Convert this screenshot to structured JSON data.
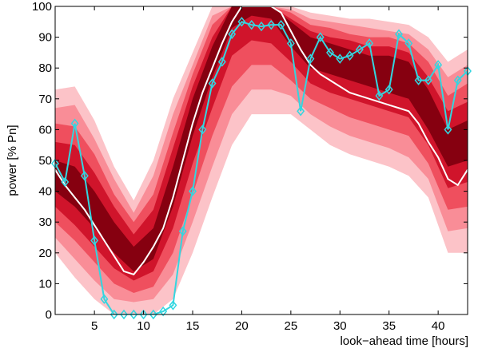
{
  "chart_data": {
    "type": "fan",
    "xlabel": "look−ahead time [hours]",
    "ylabel": "power [% Pn]",
    "xlim": [
      1,
      43
    ],
    "ylim": [
      0,
      100
    ],
    "xticks": [
      5,
      10,
      15,
      20,
      25,
      30,
      35,
      40
    ],
    "yticks": [
      0,
      10,
      20,
      30,
      40,
      50,
      60,
      70,
      80,
      90,
      100
    ],
    "band_x": [
      1,
      3,
      5,
      7,
      9,
      11,
      13,
      15,
      17,
      19,
      21,
      23,
      25,
      27,
      29,
      31,
      33,
      35,
      37,
      39,
      41,
      43
    ],
    "bands": [
      {
        "color": "#fcc3c8",
        "lower": [
          20,
          12,
          5,
          0,
          0,
          0,
          5,
          20,
          38,
          55,
          65,
          65,
          65,
          60,
          55,
          52,
          50,
          48,
          45,
          38,
          20,
          20
        ],
        "upper": [
          73,
          74,
          63,
          48,
          37,
          50,
          70,
          85,
          100,
          100,
          100,
          100,
          100,
          98,
          97,
          96,
          96,
          95,
          94,
          90,
          82,
          86
        ]
      },
      {
        "color": "#f98d97",
        "lower": [
          25,
          18,
          11,
          5,
          4,
          5,
          13,
          30,
          48,
          65,
          73,
          73,
          71,
          65,
          61,
          58,
          56,
          54,
          51,
          44,
          27,
          28
        ],
        "upper": [
          67,
          68,
          57,
          44,
          33,
          45,
          65,
          81,
          97,
          100,
          100,
          100,
          99,
          96,
          95,
          94,
          93,
          92,
          91,
          86,
          77,
          81
        ]
      },
      {
        "color": "#ef4f5e",
        "lower": [
          30,
          24,
          17,
          10,
          7,
          9,
          20,
          39,
          58,
          74,
          81,
          81,
          76,
          70,
          67,
          64,
          62,
          60,
          58,
          49,
          34,
          35
        ],
        "upper": [
          62,
          61,
          52,
          39,
          30,
          39,
          59,
          78,
          94,
          100,
          100,
          100,
          98,
          94,
          93,
          91,
          90,
          90,
          88,
          82,
          71,
          75
        ]
      },
      {
        "color": "#d0142b",
        "lower": [
          35,
          29,
          22,
          15,
          11,
          14,
          28,
          49,
          67,
          84,
          89,
          88,
          82,
          75,
          72,
          70,
          68,
          66,
          64,
          55,
          41,
          43
        ],
        "upper": [
          56,
          55,
          46,
          35,
          26,
          34,
          54,
          74,
          90,
          100,
          100,
          100,
          96,
          92,
          90,
          89,
          87,
          87,
          85,
          77,
          66,
          69
        ]
      },
      {
        "color": "#860010",
        "lower": [
          40,
          35,
          28,
          20,
          14,
          18,
          35,
          58,
          77,
          93,
          97,
          96,
          87,
          80,
          78,
          76,
          74,
          72,
          70,
          60,
          48,
          50
        ],
        "upper": [
          50,
          48,
          40,
          30,
          22,
          28,
          48,
          70,
          87,
          100,
          100,
          100,
          95,
          90,
          88,
          86,
          84,
          84,
          82,
          73,
          60,
          63
        ]
      }
    ],
    "x": [
      1,
      2,
      3,
      4,
      5,
      6,
      7,
      8,
      9,
      10,
      11,
      12,
      13,
      14,
      15,
      16,
      17,
      18,
      19,
      20,
      21,
      22,
      23,
      24,
      25,
      26,
      27,
      28,
      29,
      30,
      31,
      32,
      33,
      34,
      35,
      36,
      37,
      38,
      39,
      40,
      41,
      42,
      43
    ],
    "series": [
      {
        "color": "#ffffff",
        "marker": "none",
        "values": [
          47,
          42,
          38,
          34,
          29,
          24,
          19,
          14,
          13,
          17,
          22,
          28,
          38,
          50,
          62,
          72,
          80,
          88,
          95,
          100,
          100,
          100,
          100,
          98,
          92,
          86,
          81,
          78,
          76,
          74,
          72,
          71,
          70,
          69,
          68,
          67,
          66,
          62,
          56,
          51,
          44,
          42,
          47
        ]
      },
      {
        "color": "#33d6e0",
        "marker": "diamond",
        "values": [
          49,
          43,
          62,
          45,
          24,
          5,
          0,
          0,
          0,
          0,
          0,
          1,
          3,
          27,
          40,
          60,
          75,
          82,
          91,
          95,
          94,
          93.5,
          94,
          94,
          88,
          66,
          83,
          90,
          85,
          83,
          84,
          86,
          88,
          71,
          73,
          91,
          88,
          76,
          76,
          81,
          60,
          76,
          79
        ]
      }
    ]
  }
}
